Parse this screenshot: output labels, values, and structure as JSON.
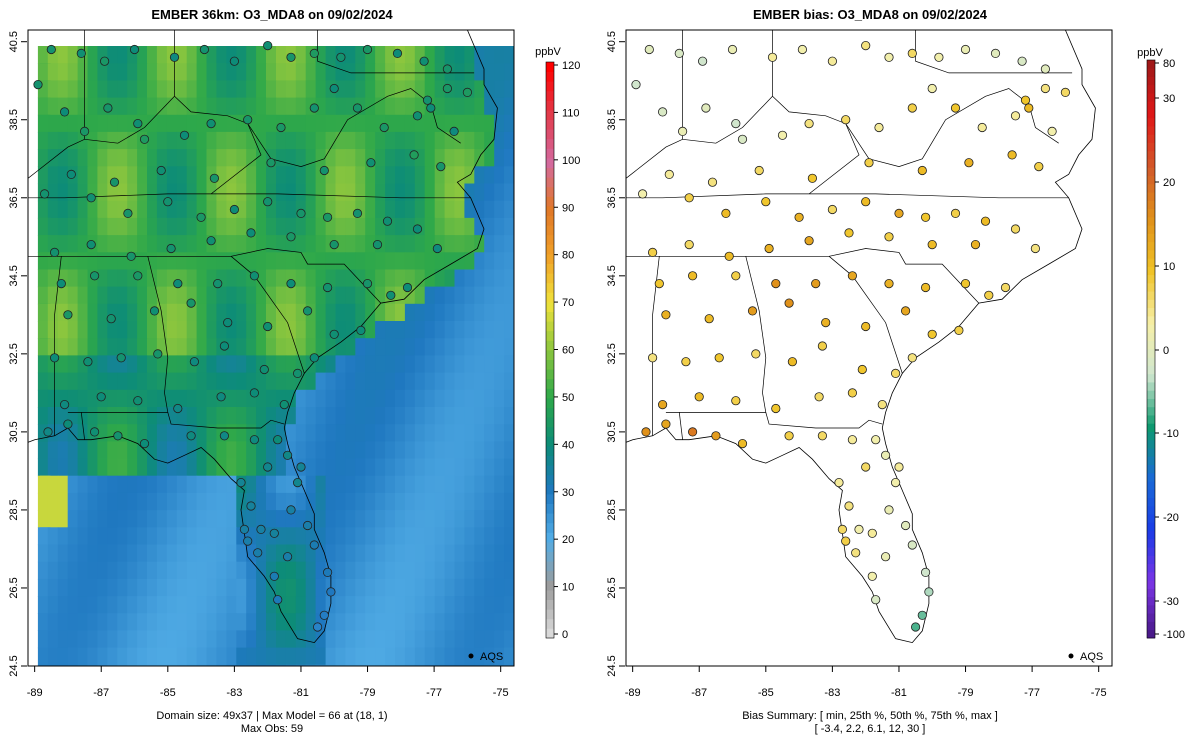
{
  "left_panel": {
    "title": "EMBER 36km: O3_MDA8 on 09/02/2024",
    "colorbar_unit": "ppbV",
    "colorbar_ticks": [
      "0",
      "10",
      "20",
      "30",
      "40",
      "50",
      "60",
      "70",
      "80",
      "90",
      "100",
      "110",
      "120"
    ],
    "legend_label": "AQS",
    "footer_line1": "Domain size: 49x37 | Max Model = 66 at (18, 1)",
    "footer_line2": "Max Obs: 59"
  },
  "right_panel": {
    "title": "EMBER bias: O3_MDA8 on 09/02/2024",
    "colorbar_unit": "ppbV",
    "colorbar_ticks": [
      "-100",
      "-30",
      "-20",
      "-10",
      "0",
      "10",
      "20",
      "30",
      "80"
    ],
    "legend_label": "AQS",
    "footer_line1": "Bias Summary: [ min, 25th %, 50th %, 75th %, max ]",
    "footer_line2": "[ -3.4,   2.2,   6.1,   12,   30 ]"
  },
  "axes": {
    "lon_ticks": [
      "-89",
      "-87",
      "-85",
      "-83",
      "-81",
      "-79",
      "-77",
      "-75"
    ],
    "lat_ticks": [
      "24.5",
      "26.5",
      "28.5",
      "30.5",
      "32.5",
      "34.5",
      "36.5",
      "38.5",
      "40.5"
    ],
    "lon_range": [
      -89.2,
      -74.6
    ],
    "lat_range": [
      24.5,
      40.8
    ]
  },
  "colors": {
    "model_scale": [
      "#d9d9d9",
      "#9c9c9c",
      "#52ade6",
      "#1f78c0",
      "#0d8c78",
      "#2ea84a",
      "#8cc63e",
      "#f0e23c",
      "#f0a028",
      "#e07828",
      "#d46aa0",
      "#e23a4a",
      "#ff0000"
    ],
    "bias_scale": [
      "#4a1a8a",
      "#7b35e6",
      "#1a3ce6",
      "#1a6ad6",
      "#0e9a6e",
      "#cfe6cf",
      "#f6f0a8",
      "#f0c428",
      "#e0921a",
      "#d25a2a",
      "#e01818",
      "#a01818"
    ]
  },
  "chart_data": {
    "type": "map",
    "model_domain": {
      "cols": 49,
      "rows": 37,
      "max_model": 66,
      "max_model_at": [
        18,
        1
      ]
    },
    "obs": {
      "max_obs": 59
    },
    "bias_summary": {
      "min": -3.4,
      "p25": 2.2,
      "median": 6.1,
      "p75": 12,
      "max": 30
    },
    "obs_sites": [
      [
        -88.5,
        40.3,
        42,
        4
      ],
      [
        -87.6,
        40.2,
        41,
        3
      ],
      [
        -86.9,
        40.0,
        44,
        2
      ],
      [
        -86.0,
        40.3,
        40,
        5
      ],
      [
        -84.8,
        40.1,
        39,
        7
      ],
      [
        -83.9,
        40.3,
        42,
        6
      ],
      [
        -83.0,
        40.0,
        40,
        7
      ],
      [
        -82.0,
        40.4,
        41,
        8
      ],
      [
        -81.3,
        40.1,
        43,
        6
      ],
      [
        -80.6,
        40.2,
        45,
        9
      ],
      [
        -79.8,
        40.1,
        42,
        6
      ],
      [
        -79.0,
        40.3,
        44,
        5
      ],
      [
        -78.1,
        40.2,
        40,
        4
      ],
      [
        -77.3,
        40.0,
        41,
        3
      ],
      [
        -76.6,
        39.8,
        43,
        4
      ],
      [
        -76.0,
        39.2,
        45,
        9
      ],
      [
        -76.6,
        39.3,
        44,
        8
      ],
      [
        -77.2,
        39.0,
        42,
        11
      ],
      [
        -77.5,
        38.6,
        41,
        7
      ],
      [
        -77.1,
        38.8,
        40,
        12
      ],
      [
        -76.4,
        38.2,
        39,
        6
      ],
      [
        -88.9,
        39.4,
        42,
        2
      ],
      [
        -88.1,
        38.7,
        40,
        3
      ],
      [
        -87.5,
        38.2,
        44,
        5
      ],
      [
        -86.8,
        38.8,
        43,
        4
      ],
      [
        -85.9,
        38.4,
        41,
        2
      ],
      [
        -85.7,
        38.0,
        45,
        3
      ],
      [
        -84.5,
        38.1,
        40,
        6
      ],
      [
        -83.7,
        38.4,
        41,
        8
      ],
      [
        -82.6,
        38.5,
        43,
        9
      ],
      [
        -81.6,
        38.3,
        44,
        7
      ],
      [
        -80.6,
        38.8,
        42,
        10
      ],
      [
        -80.0,
        39.3,
        40,
        6
      ],
      [
        -79.3,
        38.8,
        43,
        11
      ],
      [
        -78.5,
        38.3,
        44,
        7
      ],
      [
        -77.6,
        37.6,
        46,
        12
      ],
      [
        -76.8,
        37.3,
        43,
        10
      ],
      [
        -78.9,
        37.4,
        41,
        13
      ],
      [
        -80.3,
        37.2,
        42,
        12
      ],
      [
        -81.9,
        37.4,
        44,
        10
      ],
      [
        -83.6,
        37.0,
        43,
        11
      ],
      [
        -85.2,
        37.2,
        41,
        9
      ],
      [
        -86.6,
        36.9,
        43,
        8
      ],
      [
        -87.9,
        37.1,
        40,
        7
      ],
      [
        -88.7,
        36.6,
        42,
        6
      ],
      [
        -87.3,
        36.5,
        41,
        10
      ],
      [
        -86.2,
        36.1,
        43,
        12
      ],
      [
        -85.0,
        36.4,
        42,
        11
      ],
      [
        -84.0,
        36.0,
        44,
        13
      ],
      [
        -83.0,
        36.2,
        40,
        9
      ],
      [
        -82.0,
        36.4,
        42,
        12
      ],
      [
        -81.0,
        36.1,
        43,
        14
      ],
      [
        -80.2,
        36.0,
        44,
        11
      ],
      [
        -79.3,
        36.1,
        42,
        10
      ],
      [
        -78.4,
        35.9,
        41,
        12
      ],
      [
        -77.5,
        35.7,
        40,
        9
      ],
      [
        -76.9,
        35.2,
        39,
        8
      ],
      [
        -78.7,
        35.3,
        42,
        13
      ],
      [
        -80.0,
        35.3,
        43,
        12
      ],
      [
        -81.3,
        35.5,
        44,
        10
      ],
      [
        -82.5,
        35.6,
        40,
        11
      ],
      [
        -83.7,
        35.4,
        41,
        14
      ],
      [
        -84.9,
        35.2,
        42,
        13
      ],
      [
        -86.1,
        35.0,
        43,
        12
      ],
      [
        -87.3,
        35.3,
        41,
        9
      ],
      [
        -88.4,
        35.1,
        42,
        10
      ],
      [
        -88.2,
        34.3,
        40,
        11
      ],
      [
        -87.2,
        34.5,
        43,
        12
      ],
      [
        -85.9,
        34.5,
        44,
        10
      ],
      [
        -84.7,
        34.3,
        40,
        16
      ],
      [
        -83.5,
        34.3,
        42,
        15
      ],
      [
        -82.4,
        34.5,
        41,
        14
      ],
      [
        -81.3,
        34.3,
        40,
        13
      ],
      [
        -80.2,
        34.2,
        42,
        12
      ],
      [
        -79.0,
        34.3,
        43,
        11
      ],
      [
        -78.3,
        34.0,
        41,
        10
      ],
      [
        -77.8,
        34.2,
        40,
        9
      ],
      [
        -88.0,
        33.5,
        44,
        13
      ],
      [
        -86.7,
        33.4,
        42,
        12
      ],
      [
        -85.4,
        33.6,
        41,
        15
      ],
      [
        -84.3,
        33.8,
        43,
        16
      ],
      [
        -83.2,
        33.3,
        40,
        13
      ],
      [
        -82.0,
        33.2,
        41,
        12
      ],
      [
        -80.8,
        33.6,
        42,
        14
      ],
      [
        -80.0,
        33.0,
        41,
        11
      ],
      [
        -79.2,
        33.1,
        40,
        10
      ],
      [
        -88.4,
        32.4,
        40,
        8
      ],
      [
        -87.4,
        32.3,
        41,
        10
      ],
      [
        -86.4,
        32.4,
        42,
        11
      ],
      [
        -85.3,
        32.5,
        43,
        9
      ],
      [
        -84.2,
        32.3,
        39,
        12
      ],
      [
        -83.3,
        32.7,
        40,
        10
      ],
      [
        -82.1,
        32.1,
        41,
        11
      ],
      [
        -81.1,
        32.0,
        42,
        9
      ],
      [
        -80.6,
        32.4,
        40,
        8
      ],
      [
        -88.1,
        31.2,
        39,
        14
      ],
      [
        -87.0,
        31.4,
        40,
        12
      ],
      [
        -85.9,
        31.3,
        41,
        10
      ],
      [
        -84.7,
        31.1,
        38,
        11
      ],
      [
        -83.4,
        31.4,
        39,
        9
      ],
      [
        -82.4,
        31.5,
        40,
        10
      ],
      [
        -81.5,
        31.2,
        41,
        8
      ],
      [
        -88.6,
        30.5,
        38,
        16
      ],
      [
        -88.0,
        30.7,
        40,
        14
      ],
      [
        -87.2,
        30.5,
        41,
        18
      ],
      [
        -86.5,
        30.4,
        42,
        15
      ],
      [
        -85.7,
        30.2,
        40,
        12
      ],
      [
        -84.3,
        30.4,
        39,
        10
      ],
      [
        -83.3,
        30.4,
        38,
        9
      ],
      [
        -82.4,
        30.3,
        39,
        7
      ],
      [
        -81.7,
        30.3,
        40,
        6
      ],
      [
        -81.4,
        29.9,
        38,
        5
      ],
      [
        -81.1,
        29.2,
        37,
        6
      ],
      [
        -82.0,
        29.6,
        37,
        9
      ],
      [
        -82.8,
        29.2,
        36,
        7
      ],
      [
        -82.5,
        28.6,
        35,
        8
      ],
      [
        -82.2,
        28.0,
        34,
        6
      ],
      [
        -81.8,
        27.9,
        35,
        7
      ],
      [
        -82.3,
        27.4,
        33,
        8
      ],
      [
        -81.8,
        26.8,
        32,
        6
      ],
      [
        -81.3,
        28.5,
        34,
        5
      ],
      [
        -80.8,
        28.1,
        33,
        4
      ],
      [
        -80.6,
        27.6,
        32,
        3
      ],
      [
        -80.2,
        26.9,
        31,
        2
      ],
      [
        -80.1,
        26.4,
        30,
        1
      ],
      [
        -80.3,
        25.8,
        29,
        -1
      ],
      [
        -80.5,
        25.5,
        28,
        -2
      ],
      [
        -81.7,
        26.2,
        31,
        3
      ],
      [
        -81.4,
        27.3,
        33,
        5
      ],
      [
        -82.7,
        28.0,
        34,
        9
      ],
      [
        -82.6,
        27.7,
        33,
        10
      ],
      [
        -81.0,
        29.6,
        36,
        7
      ]
    ]
  }
}
